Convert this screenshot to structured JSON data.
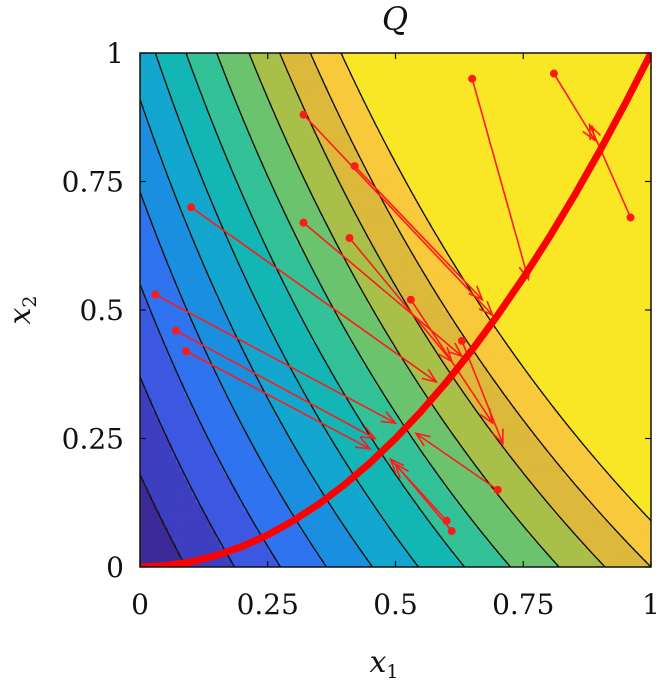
{
  "chart_data": {
    "type": "contour",
    "title": "Q",
    "xlabel": "x",
    "xlabel_sub": "1",
    "ylabel": "x",
    "ylabel_sub": "2",
    "xlim": [
      0,
      1
    ],
    "ylim": [
      0,
      1
    ],
    "xticks": [
      "0",
      "0.25",
      "0.5",
      "0.75",
      "1"
    ],
    "yticks": [
      "0",
      "0.25",
      "0.5",
      "0.75",
      "1"
    ],
    "grid": false,
    "colormap": "parula",
    "contour_levels": [
      0.18,
      0.37,
      0.55,
      0.73,
      0.91,
      1.09,
      1.27,
      1.45,
      1.64,
      1.82,
      2.0,
      2.18
    ],
    "series": [
      {
        "type": "curve",
        "color": "#ff0000",
        "description": "x2 = x1^2 equilibrium curve",
        "points": [
          [
            0,
            0
          ],
          [
            0.05,
            0.0025
          ],
          [
            0.1,
            0.01
          ],
          [
            0.15,
            0.0225
          ],
          [
            0.2,
            0.04
          ],
          [
            0.25,
            0.0625
          ],
          [
            0.3,
            0.09
          ],
          [
            0.35,
            0.1225
          ],
          [
            0.4,
            0.16
          ],
          [
            0.45,
            0.2025
          ],
          [
            0.5,
            0.25
          ],
          [
            0.55,
            0.3025
          ],
          [
            0.6,
            0.36
          ],
          [
            0.65,
            0.4225
          ],
          [
            0.7,
            0.49
          ],
          [
            0.75,
            0.5625
          ],
          [
            0.8,
            0.64
          ],
          [
            0.85,
            0.7225
          ],
          [
            0.9,
            0.81
          ],
          [
            0.95,
            0.9025
          ],
          [
            1,
            1
          ]
        ]
      },
      {
        "type": "arrows",
        "color": "#ff0000",
        "arrows": [
          {
            "from": [
              0.32,
              0.88
            ],
            "to": [
              0.69,
              0.49
            ]
          },
          {
            "from": [
              0.42,
              0.78
            ],
            "to": [
              0.67,
              0.52
            ]
          },
          {
            "from": [
              0.32,
              0.67
            ],
            "to": [
              0.63,
              0.41
            ]
          },
          {
            "from": [
              0.41,
              0.64
            ],
            "to": [
              0.61,
              0.4
            ]
          },
          {
            "from": [
              0.1,
              0.7
            ],
            "to": [
              0.58,
              0.36
            ]
          },
          {
            "from": [
              0.53,
              0.52
            ],
            "to": [
              0.69,
              0.28
            ]
          },
          {
            "from": [
              0.63,
              0.44
            ],
            "to": [
              0.71,
              0.24
            ]
          },
          {
            "from": [
              0.03,
              0.53
            ],
            "to": [
              0.5,
              0.28
            ]
          },
          {
            "from": [
              0.07,
              0.46
            ],
            "to": [
              0.46,
              0.25
            ]
          },
          {
            "from": [
              0.09,
              0.42
            ],
            "to": [
              0.45,
              0.23
            ]
          },
          {
            "from": [
              0.7,
              0.15
            ],
            "to": [
              0.54,
              0.26
            ]
          },
          {
            "from": [
              0.6,
              0.09
            ],
            "to": [
              0.49,
              0.21
            ]
          },
          {
            "from": [
              0.61,
              0.07
            ],
            "to": [
              0.5,
              0.2
            ]
          },
          {
            "from": [
              0.65,
              0.95
            ],
            "to": [
              0.76,
              0.56
            ]
          },
          {
            "from": [
              0.81,
              0.96
            ],
            "to": [
              0.89,
              0.83
            ]
          },
          {
            "from": [
              0.96,
              0.68
            ],
            "to": [
              0.88,
              0.86
            ]
          }
        ]
      }
    ]
  }
}
